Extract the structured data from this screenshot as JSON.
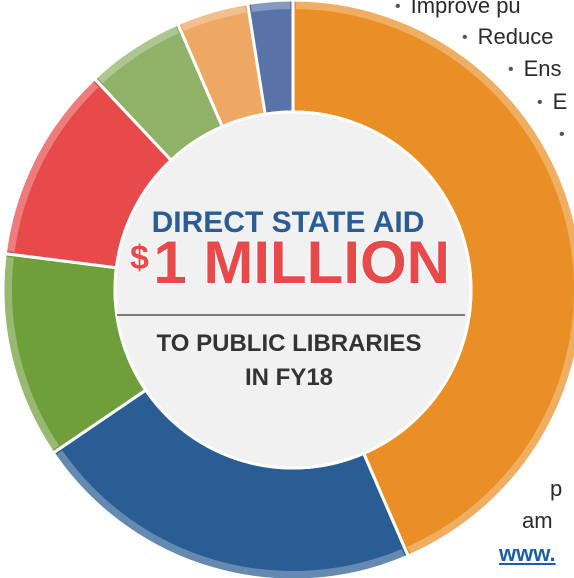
{
  "chart_data": {
    "type": "pie",
    "title": "DIRECT STATE AID $1 MILLION TO PUBLIC LIBRARIES IN FY18",
    "slices": [
      {
        "color": "#e98f25",
        "value": 43.5
      },
      {
        "color": "#2a5d93",
        "value": 22.0
      },
      {
        "color": "#6f9f3b",
        "value": 11.5
      },
      {
        "color": "#e84a4c",
        "value": 11.0
      },
      {
        "color": "#8fb268",
        "value": 5.5
      },
      {
        "color": "#eea863",
        "value": 4.0
      },
      {
        "color": "#5873a8",
        "value": 2.5
      }
    ]
  },
  "center": {
    "line1": "DIRECT STATE AID",
    "dollar": "$",
    "amount": "1 MILLION",
    "line2": "TO PUBLIC LIBRARIES",
    "line3": "IN FY18"
  },
  "side": {
    "bullets": [
      "Improve pu",
      "Reduce",
      "Ens",
      "E",
      ""
    ],
    "trailing": [
      "p",
      "am"
    ],
    "link": "www."
  }
}
